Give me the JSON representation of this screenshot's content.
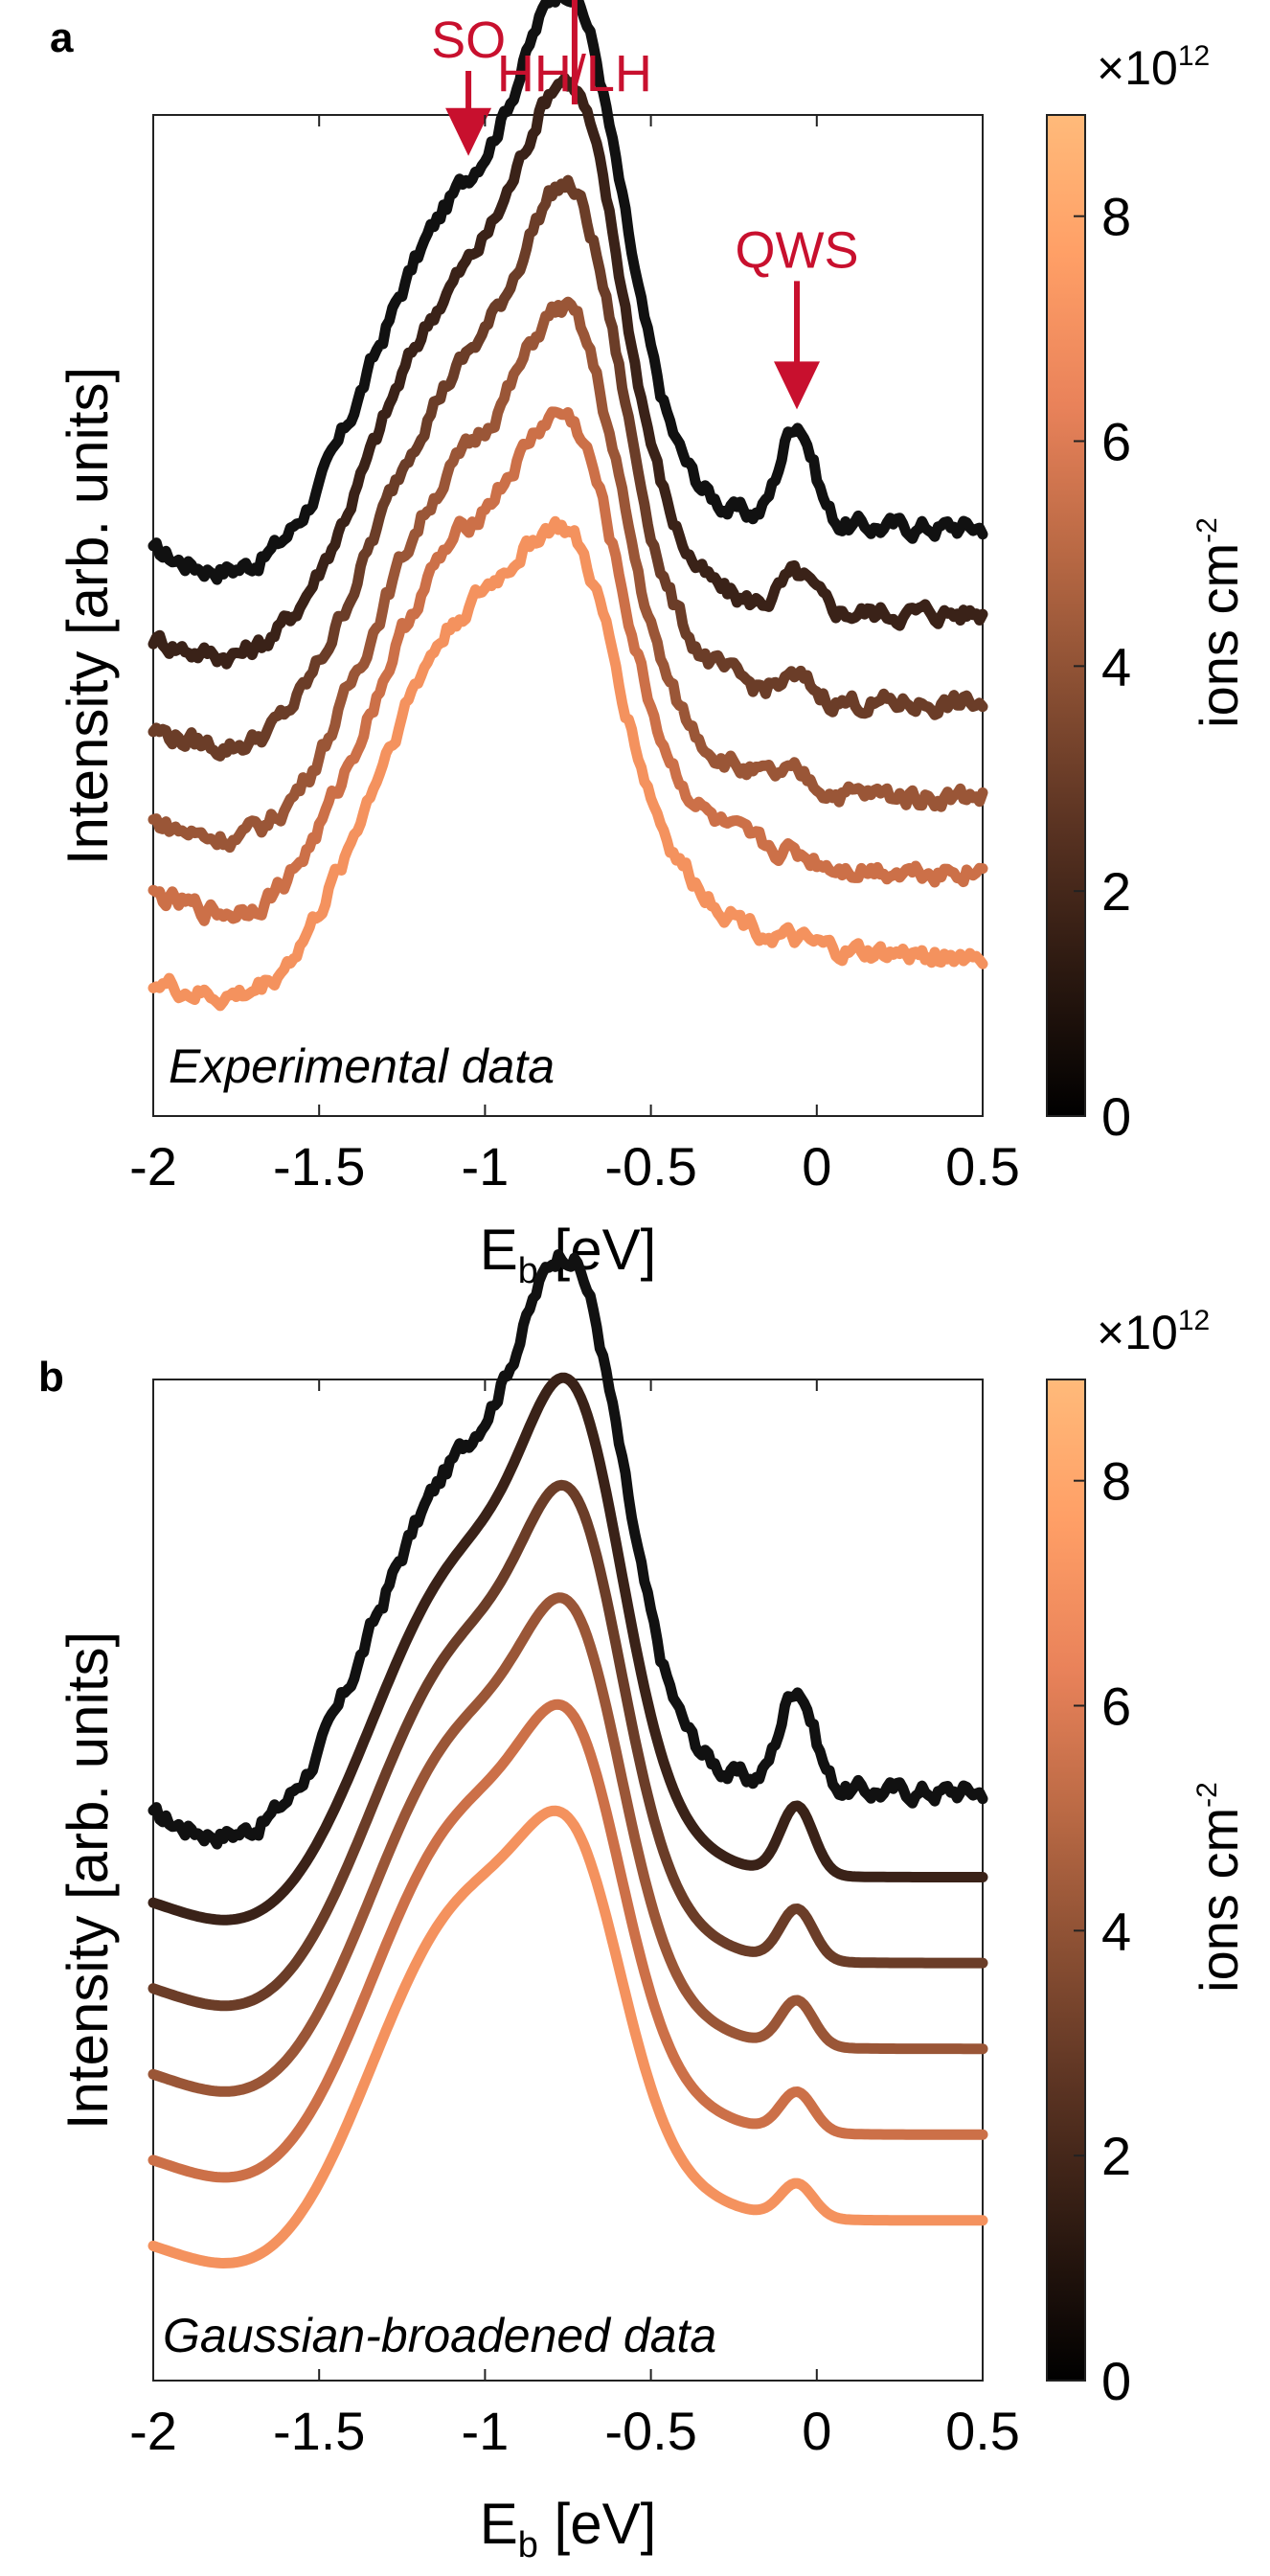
{
  "chart_data": [
    {
      "type": "line",
      "panel_label": "a",
      "xlabel_main": "E",
      "xlabel_sub": "b",
      "xlabel_unit": " [eV]",
      "ylabel": "Intensity [arb. units]",
      "xlim": [
        -2,
        0.5
      ],
      "xticks": [
        -2,
        -1.5,
        -1,
        -0.5,
        0,
        0.5
      ],
      "xtick_labels": [
        "-2",
        "-1.5",
        "-1",
        "-0.5",
        "0",
        "0.5"
      ],
      "ylim": [
        0,
        1.75
      ],
      "note": "Experimental data",
      "noisy": true,
      "annotations": [
        {
          "text": "SO",
          "x": -1.05,
          "color": "#c8102e"
        },
        {
          "text": "HH/LH",
          "x": -0.73,
          "color": "#c8102e"
        },
        {
          "text": "QWS",
          "x": -0.06,
          "color": "#c8102e"
        }
      ],
      "series": [
        {
          "name": "0",
          "color": "#111111",
          "offset": 1.03,
          "so": 0.62,
          "hh": 0.56,
          "qws": 0.18,
          "tail": 0.0
        },
        {
          "name": "1.75e12",
          "color": "#3a2218",
          "offset": 0.88,
          "so": 0.62,
          "hh": 0.55,
          "qws": 0.06,
          "tail": 0.0
        },
        {
          "name": "3.5e12",
          "color": "#6b3d28",
          "offset": 0.72,
          "so": 0.62,
          "hh": 0.52,
          "qws": 0.03,
          "tail": 0.02
        },
        {
          "name": "5.25e12",
          "color": "#9a5637",
          "offset": 0.56,
          "so": 0.62,
          "hh": 0.46,
          "qws": 0.02,
          "tail": 0.03
        },
        {
          "name": "7e12",
          "color": "#cc7048",
          "offset": 0.43,
          "so": 0.62,
          "hh": 0.4,
          "qws": 0.01,
          "tail": 0.04
        },
        {
          "name": "8.75e12",
          "color": "#f4925e",
          "offset": 0.28,
          "so": 0.63,
          "hh": 0.34,
          "qws": 0.0,
          "tail": 0.05
        }
      ]
    },
    {
      "type": "line",
      "panel_label": "b",
      "xlabel_main": "E",
      "xlabel_sub": "b",
      "xlabel_unit": " [eV]",
      "ylabel": "Intensity [arb. units]",
      "xlim": [
        -2,
        0.5
      ],
      "xticks": [
        -2,
        -1.5,
        -1,
        -0.5,
        0,
        0.5
      ],
      "xtick_labels": [
        "-2",
        "-1.5",
        "-1",
        "-0.5",
        "0",
        "0.5"
      ],
      "ylim": [
        0,
        1.75
      ],
      "note": "Gaussian-broadened data",
      "noisy_first_only": true,
      "series": [
        {
          "name": "0",
          "color": "#111111",
          "offset": 1.03,
          "so": 0.62,
          "hh": 0.56,
          "qws": 0.18,
          "tail": 0.0
        },
        {
          "name": "1.75e12",
          "color": "#3a2218",
          "offset": 0.88,
          "so": 0.6,
          "hh": 0.5,
          "qws": 0.12,
          "tail": 0.0
        },
        {
          "name": "3.5e12",
          "color": "#6b3d28",
          "offset": 0.73,
          "so": 0.6,
          "hh": 0.46,
          "qws": 0.09,
          "tail": 0.0
        },
        {
          "name": "5.25e12",
          "color": "#9a5637",
          "offset": 0.58,
          "so": 0.6,
          "hh": 0.41,
          "qws": 0.08,
          "tail": 0.0
        },
        {
          "name": "7e12",
          "color": "#cc7048",
          "offset": 0.43,
          "so": 0.6,
          "hh": 0.37,
          "qws": 0.07,
          "tail": 0.0
        },
        {
          "name": "8.75e12",
          "color": "#f4925e",
          "offset": 0.28,
          "so": 0.6,
          "hh": 0.33,
          "qws": 0.06,
          "tail": 0.0
        }
      ]
    }
  ],
  "colorbar": {
    "label_main": "ions cm",
    "label_sup": "-2",
    "exponent_prefix": "×10",
    "exponent_power": "12",
    "range": [
      0,
      8.9
    ],
    "ticks": [
      0,
      2,
      4,
      6,
      8
    ],
    "tick_labels": [
      "0",
      "2",
      "4",
      "6",
      "8"
    ],
    "colors": [
      "#000000",
      "#2a1810",
      "#5a3322",
      "#8a4f33",
      "#bb6a45",
      "#e9825a",
      "#ff9f66",
      "#ffba7a"
    ]
  }
}
